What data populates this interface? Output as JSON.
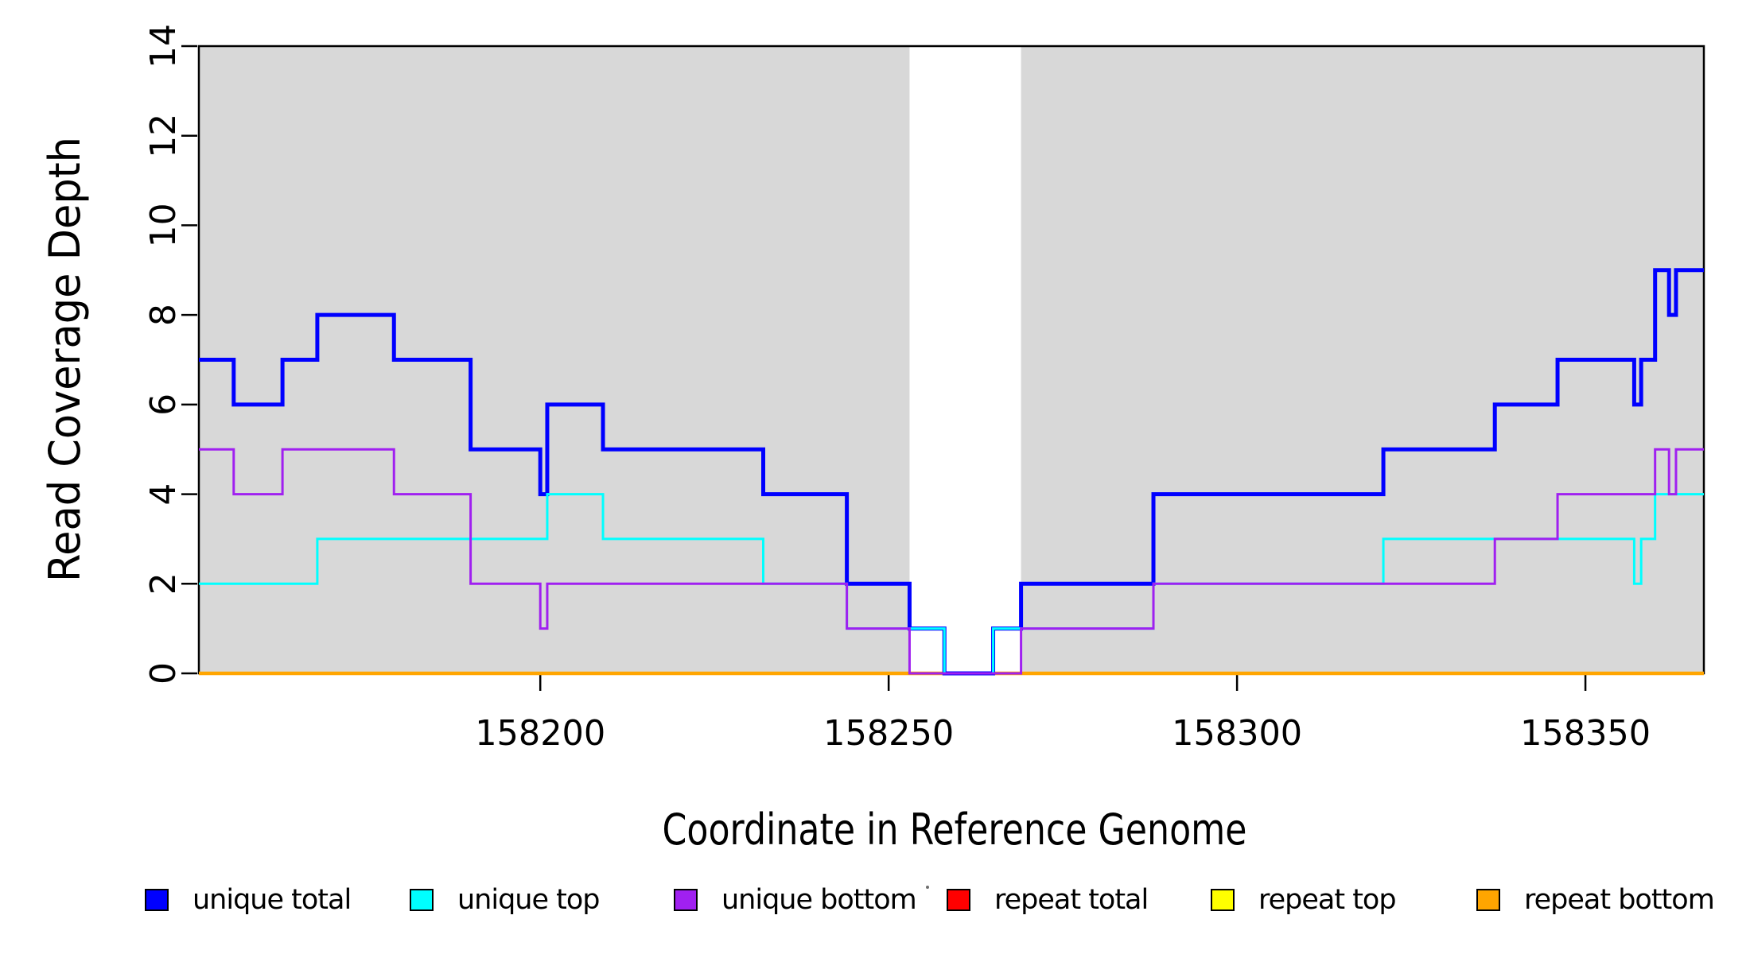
{
  "figure": {
    "background": "#ffffff",
    "shade_color": "#d8d8d8",
    "box_color": "#000000"
  },
  "axes": {
    "x_title": "Coordinate in Reference Genome",
    "y_title": "Read Coverage Depth",
    "x_tick_labels": [
      "158200",
      "158250",
      "158300",
      "158350"
    ],
    "y_tick_labels": [
      "0",
      "2",
      "4",
      "6",
      "8",
      "10",
      "12",
      "14"
    ]
  },
  "legend": {
    "items": [
      {
        "label": "unique total",
        "color": "#0000ff"
      },
      {
        "label": "unique top",
        "color": "#00ffff"
      },
      {
        "label": "unique bottom",
        "color": "#a020f0"
      },
      {
        "label": "repeat total",
        "color": "#ff0000"
      },
      {
        "label": "repeat top",
        "color": "#ffff00"
      },
      {
        "label": "repeat bottom",
        "color": "#ffa500"
      }
    ]
  },
  "chart_data": {
    "type": "line",
    "subtype": "step",
    "title": "",
    "xlabel": "Coordinate in Reference Genome",
    "ylabel": "Read Coverage Depth",
    "xlim": [
      158151,
      158367
    ],
    "ylim": [
      0,
      14
    ],
    "x_ticks": [
      158200,
      158250,
      158300,
      158350
    ],
    "y_ticks": [
      0,
      2,
      4,
      6,
      8,
      10,
      12,
      14
    ],
    "grid": false,
    "legend_position": "bottom",
    "shaded_regions": [
      {
        "x0": 158151,
        "x1": 158253,
        "color": "#d8d8d8"
      },
      {
        "x0": 158269,
        "x1": 158367,
        "color": "#d8d8d8"
      }
    ],
    "x_end": 158367,
    "draw_order": [
      "repeat total",
      "repeat top",
      "repeat bottom",
      "unique total",
      "unique top",
      "unique bottom"
    ],
    "series": [
      {
        "name": "unique total",
        "color": "#0000ff",
        "line_width": 5,
        "steps": [
          [
            158151,
            7
          ],
          [
            158156,
            6
          ],
          [
            158163,
            7
          ],
          [
            158168,
            8
          ],
          [
            158179,
            7
          ],
          [
            158190,
            5
          ],
          [
            158200,
            4
          ],
          [
            158201,
            6
          ],
          [
            158209,
            5
          ],
          [
            158232,
            4
          ],
          [
            158244,
            2
          ],
          [
            158253,
            1
          ],
          [
            158258,
            0
          ],
          [
            158265,
            1
          ],
          [
            158269,
            2
          ],
          [
            158288,
            4
          ],
          [
            158321,
            5
          ],
          [
            158337,
            6
          ],
          [
            158346,
            7
          ],
          [
            158357,
            6
          ],
          [
            158358,
            7
          ],
          [
            158360,
            9
          ],
          [
            158362,
            8
          ],
          [
            158363,
            9
          ]
        ]
      },
      {
        "name": "unique top",
        "color": "#00ffff",
        "line_width": 3,
        "steps": [
          [
            158151,
            2
          ],
          [
            158168,
            3
          ],
          [
            158201,
            4
          ],
          [
            158209,
            3
          ],
          [
            158232,
            2
          ],
          [
            158244,
            1
          ],
          [
            158258,
            0
          ],
          [
            158265,
            1
          ],
          [
            158288,
            2
          ],
          [
            158321,
            3
          ],
          [
            158357,
            2
          ],
          [
            158358,
            3
          ],
          [
            158360,
            4
          ]
        ]
      },
      {
        "name": "unique bottom",
        "color": "#a020f0",
        "line_width": 3,
        "steps": [
          [
            158151,
            5
          ],
          [
            158156,
            4
          ],
          [
            158163,
            5
          ],
          [
            158179,
            4
          ],
          [
            158190,
            2
          ],
          [
            158200,
            1
          ],
          [
            158201,
            2
          ],
          [
            158244,
            1
          ],
          [
            158253,
            0
          ],
          [
            158269,
            1
          ],
          [
            158288,
            2
          ],
          [
            158337,
            3
          ],
          [
            158346,
            4
          ],
          [
            158360,
            5
          ],
          [
            158362,
            4
          ],
          [
            158363,
            5
          ]
        ]
      },
      {
        "name": "repeat total",
        "color": "#ff0000",
        "line_width": 3,
        "steps": [
          [
            158151,
            0
          ]
        ]
      },
      {
        "name": "repeat top",
        "color": "#ffff00",
        "line_width": 3,
        "steps": [
          [
            158151,
            0
          ]
        ]
      },
      {
        "name": "repeat bottom",
        "color": "#ffa500",
        "line_width": 4.5,
        "steps": [
          [
            158151,
            0
          ]
        ]
      }
    ]
  }
}
